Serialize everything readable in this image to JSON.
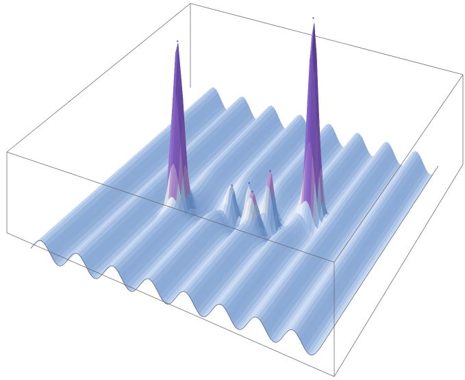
{
  "chart_data": {
    "type": "surface3d",
    "colors": {
      "valley": "#7fb0f4",
      "mid": "#c9ddfb",
      "highlight": "#ffffff",
      "warm": "#f4e2cf",
      "peak": "#9c6fd9",
      "peak_dark": "#6c4bbf"
    },
    "ripple": {
      "amplitude": 0.06,
      "wavelength": 0.62,
      "direction": "along-x"
    },
    "peaks": [
      {
        "x": -1.15,
        "y": -0.35,
        "height": 1.0,
        "width": 0.09
      },
      {
        "x": 0.95,
        "y": 0.55,
        "height": 1.25,
        "width": 0.09
      },
      {
        "x": -0.05,
        "y": 0.1,
        "height": 0.32,
        "width": 0.08
      },
      {
        "x": 0.3,
        "y": 0.2,
        "height": 0.35,
        "width": 0.08
      },
      {
        "x": -0.35,
        "y": 0.05,
        "height": 0.22,
        "width": 0.09
      },
      {
        "x": 0.15,
        "y": -0.15,
        "height": 0.2,
        "width": 0.1
      }
    ],
    "basin": {
      "x": -0.1,
      "y": 0.1,
      "depth": -0.12,
      "rx": 1.2,
      "ry": 0.5
    },
    "x_range": [
      -2.5,
      2.5
    ],
    "y_range": [
      -2.5,
      2.5
    ],
    "z_range": [
      -0.2,
      1.4
    ],
    "grid": "off",
    "axes": "box"
  }
}
